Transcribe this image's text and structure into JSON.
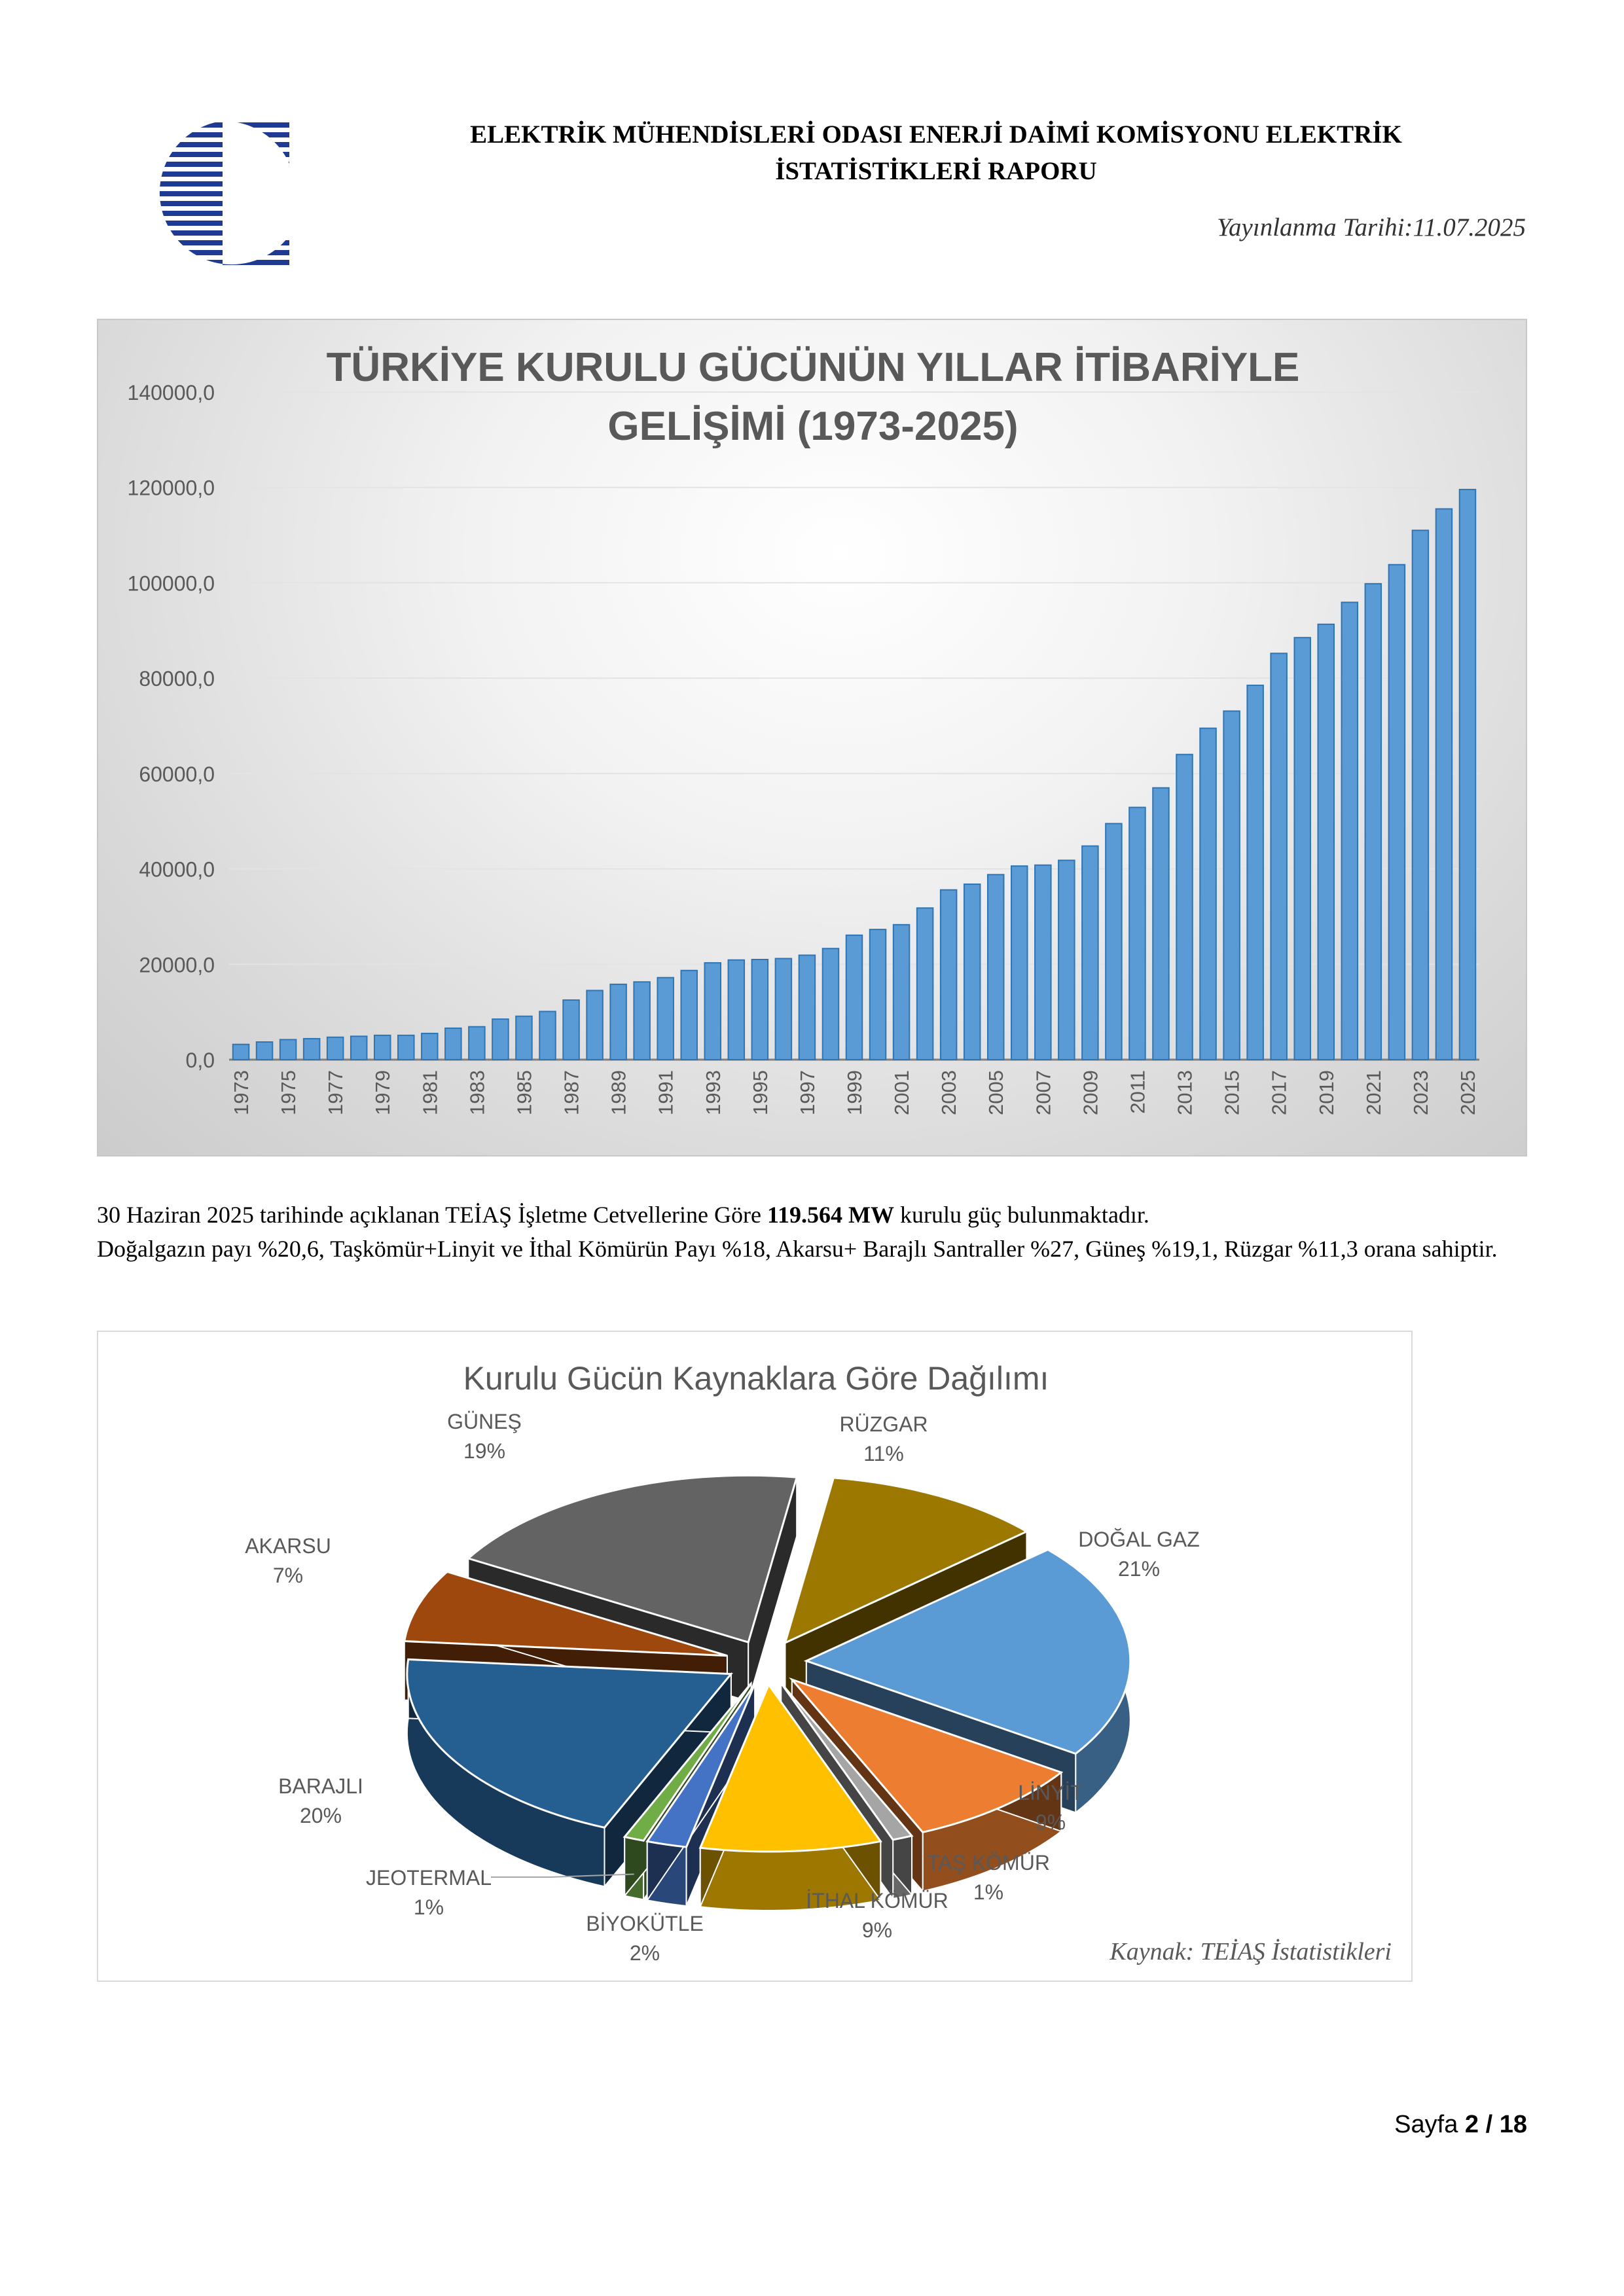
{
  "header": {
    "title_line1": "ELEKTRİK MÜHENDİSLERİ ODASI ENERJİ DAİMİ KOMİSYONU ELEKTRİK",
    "title_line2": "İSTATİSTİKLERİ RAPORU",
    "date": "Yayınlanma Tarihi:11.07.2025"
  },
  "paragraph": {
    "part1": "30 Haziran 2025 tarihinde açıklanan TEİAŞ İşletme Cetvellerine Göre ",
    "bold": "119.564 MW",
    "part2": " kurulu güç bulunmaktadır.",
    "line2": "Doğalgazın payı %20,6, Taşkömür+Linyit ve İthal Kömürün Payı %18, Akarsu+ Barajlı Santraller %27, Güneş %19,1, Rüzgar %11,3 orana sahiptir."
  },
  "footer": {
    "page_label": "Sayfa ",
    "page_current": "2",
    "page_sep": " / ",
    "page_total": "18"
  },
  "colors": {
    "bar_fill": "#5b9bd5",
    "bar_stroke": "#2e75b6",
    "logo_blue": "#1f3a93"
  },
  "chart_data": [
    {
      "type": "bar",
      "title_line1": "TÜRKİYE KURULU GÜCÜNÜN YILLAR İTİBARİYLE",
      "title_line2": "GELİŞİMİ (1973-2025)",
      "categories": [
        "1973",
        "1974",
        "1975",
        "1976",
        "1977",
        "1978",
        "1979",
        "1980",
        "1981",
        "1982",
        "1983",
        "1984",
        "1985",
        "1986",
        "1987",
        "1988",
        "1989",
        "1990",
        "1991",
        "1992",
        "1993",
        "1994",
        "1995",
        "1996",
        "1997",
        "1998",
        "1999",
        "2000",
        "2001",
        "2002",
        "2003",
        "2004",
        "2005",
        "2006",
        "2007",
        "2008",
        "2009",
        "2010",
        "2011",
        "2012",
        "2013",
        "2014",
        "2015",
        "2016",
        "2017",
        "2018",
        "2019",
        "2020",
        "2021",
        "2022",
        "2023",
        "2024",
        "2025"
      ],
      "values": [
        3200,
        3700,
        4200,
        4400,
        4700,
        4900,
        5100,
        5100,
        5500,
        6600,
        6900,
        8500,
        9100,
        10100,
        12500,
        14500,
        15800,
        16300,
        17200,
        18700,
        20300,
        20900,
        21000,
        21200,
        21900,
        23300,
        26100,
        27300,
        28300,
        31800,
        35600,
        36800,
        38800,
        40600,
        40800,
        41800,
        44800,
        49500,
        52900,
        57000,
        64000,
        69500,
        73100,
        78500,
        85200,
        88500,
        91300,
        95900,
        99800,
        103800,
        111000,
        115500,
        119564
      ],
      "y_ticks": [
        "0,0",
        "20000,0",
        "40000,0",
        "60000,0",
        "80000,0",
        "100000,0",
        "120000,0",
        "140000,0"
      ],
      "x_tick_labels": [
        "1973",
        "1975",
        "1977",
        "1979",
        "1981",
        "1983",
        "1985",
        "1987",
        "1989",
        "1991",
        "1993",
        "1995",
        "1997",
        "1999",
        "2001",
        "2003",
        "2005",
        "2007",
        "2009",
        "2011",
        "2013",
        "2015",
        "2017",
        "2019",
        "2021",
        "2023",
        "2025"
      ],
      "ylim": [
        0,
        140000
      ],
      "grid": true,
      "legend": "none"
    },
    {
      "type": "pie",
      "title": "Kurulu Gücün Kaynaklara Göre Dağılımı",
      "source": "Kaynak: TEİAŞ İstatistikleri",
      "slices": [
        {
          "label": "RÜZGAR",
          "value_label": "11%",
          "value": 11,
          "color": "#9c7800"
        },
        {
          "label": "DOĞAL GAZ",
          "value_label": "21%",
          "value": 21,
          "color": "#5b9bd5"
        },
        {
          "label": "LİNYİT",
          "value_label": "9%",
          "value": 9,
          "color": "#ed7d31"
        },
        {
          "label": "TAŞ KÖMÜR",
          "value_label": "1%",
          "value": 1,
          "color": "#a5a5a5"
        },
        {
          "label": "İTHAL KÖMÜR",
          "value_label": "9%",
          "value": 9,
          "color": "#ffc000"
        },
        {
          "label": "BİYOKÜTLE",
          "value_label": "2%",
          "value": 2,
          "color": "#4472c4"
        },
        {
          "label": "JEOTERMAL",
          "value_label": "1%",
          "value": 1,
          "color": "#70ad47"
        },
        {
          "label": "BARAJLI",
          "value_label": "20%",
          "value": 20,
          "color": "#255e91"
        },
        {
          "label": "AKARSU",
          "value_label": "7%",
          "value": 7,
          "color": "#9e480e"
        },
        {
          "label": "GÜNEŞ",
          "value_label": "19%",
          "value": 19,
          "color": "#636363"
        }
      ],
      "legend": "none",
      "style": "3d-exploded"
    }
  ]
}
